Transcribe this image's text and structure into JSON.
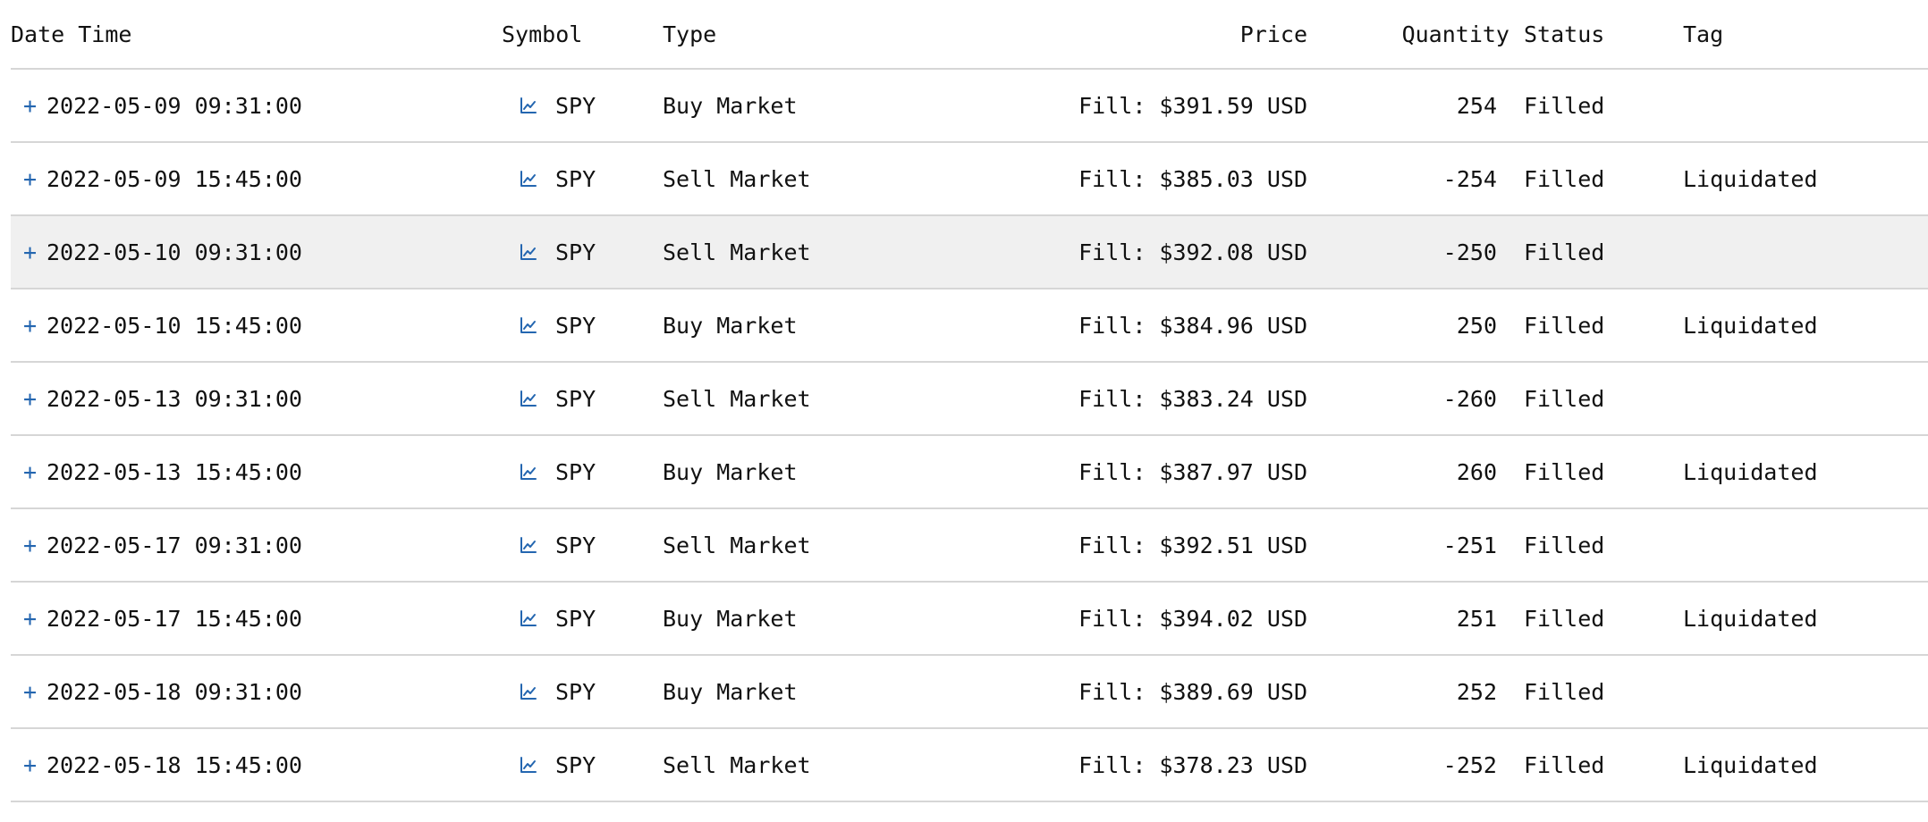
{
  "columns": {
    "datetime": "Date Time",
    "symbol": "Symbol",
    "type": "Type",
    "price": "Price",
    "quantity": "Quantity",
    "status": "Status",
    "tag": "Tag"
  },
  "expand_glyph": "+",
  "highlight_color": "#f0f0f0",
  "accent_color": "#2466b0",
  "icons": {
    "expand": "plus-icon",
    "symbol": "line-chart-icon"
  },
  "rows": [
    {
      "datetime": "2022-05-09 09:31:00",
      "symbol": "SPY",
      "type": "Buy Market",
      "price": "Fill: $391.59 USD",
      "quantity": "254",
      "status": "Filled",
      "tag": ""
    },
    {
      "datetime": "2022-05-09 15:45:00",
      "symbol": "SPY",
      "type": "Sell Market",
      "price": "Fill: $385.03 USD",
      "quantity": "-254",
      "status": "Filled",
      "tag": "Liquidated"
    },
    {
      "datetime": "2022-05-10 09:31:00",
      "symbol": "SPY",
      "type": "Sell Market",
      "price": "Fill: $392.08 USD",
      "quantity": "-250",
      "status": "Filled",
      "tag": ""
    },
    {
      "datetime": "2022-05-10 15:45:00",
      "symbol": "SPY",
      "type": "Buy Market",
      "price": "Fill: $384.96 USD",
      "quantity": "250",
      "status": "Filled",
      "tag": "Liquidated"
    },
    {
      "datetime": "2022-05-13 09:31:00",
      "symbol": "SPY",
      "type": "Sell Market",
      "price": "Fill: $383.24 USD",
      "quantity": "-260",
      "status": "Filled",
      "tag": ""
    },
    {
      "datetime": "2022-05-13 15:45:00",
      "symbol": "SPY",
      "type": "Buy Market",
      "price": "Fill: $387.97 USD",
      "quantity": "260",
      "status": "Filled",
      "tag": "Liquidated"
    },
    {
      "datetime": "2022-05-17 09:31:00",
      "symbol": "SPY",
      "type": "Sell Market",
      "price": "Fill: $392.51 USD",
      "quantity": "-251",
      "status": "Filled",
      "tag": ""
    },
    {
      "datetime": "2022-05-17 15:45:00",
      "symbol": "SPY",
      "type": "Buy Market",
      "price": "Fill: $394.02 USD",
      "quantity": "251",
      "status": "Filled",
      "tag": "Liquidated"
    },
    {
      "datetime": "2022-05-18 09:31:00",
      "symbol": "SPY",
      "type": "Buy Market",
      "price": "Fill: $389.69 USD",
      "quantity": "252",
      "status": "Filled",
      "tag": ""
    },
    {
      "datetime": "2022-05-18 15:45:00",
      "symbol": "SPY",
      "type": "Sell Market",
      "price": "Fill: $378.23 USD",
      "quantity": "-252",
      "status": "Filled",
      "tag": "Liquidated"
    }
  ]
}
